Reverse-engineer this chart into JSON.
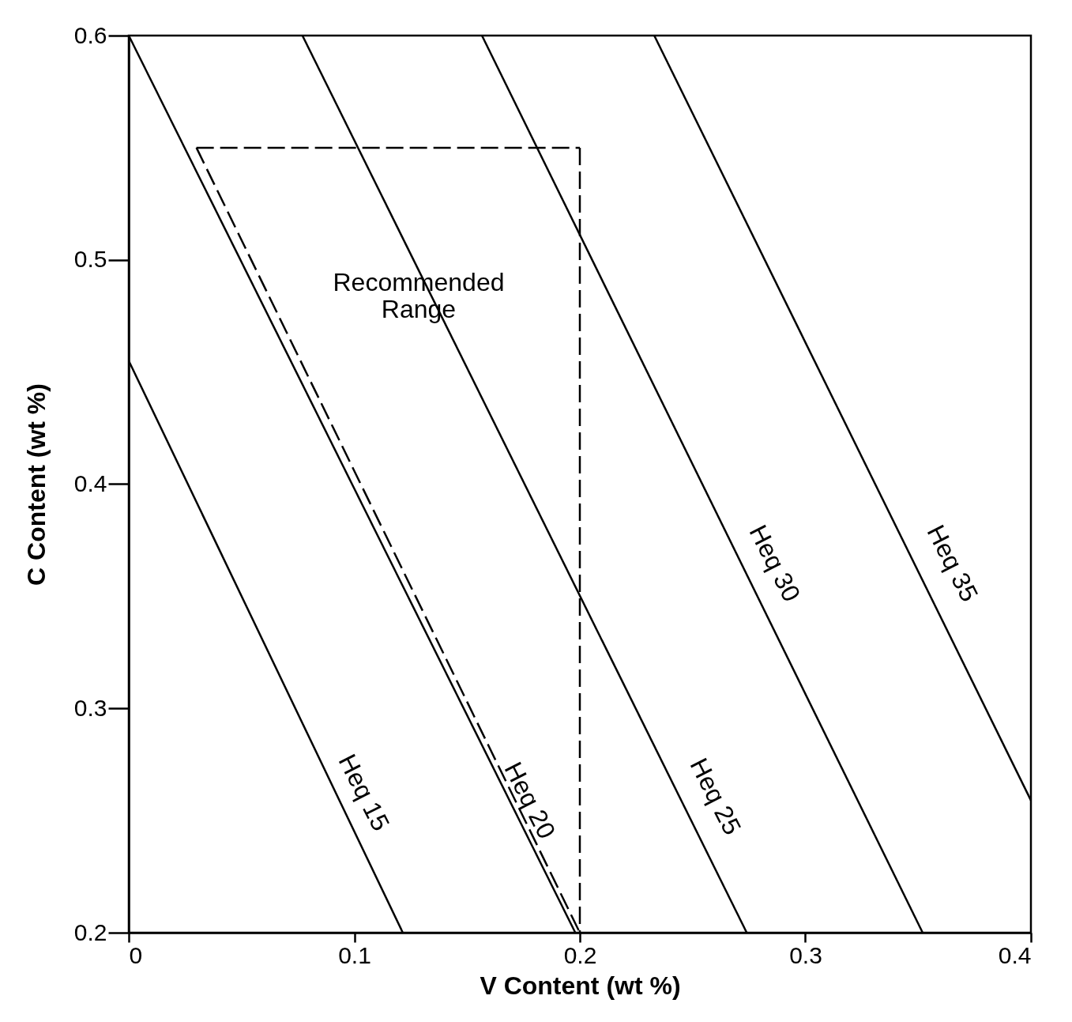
{
  "chart_data": {
    "type": "line",
    "xlabel": "V Content (wt %)",
    "ylabel": "C Content (wt %)",
    "xlim": [
      0,
      0.4
    ],
    "ylim": [
      0.2,
      0.6
    ],
    "xticks": [
      {
        "value": 0,
        "label": "0"
      },
      0.1,
      0.2,
      0.3,
      0.4
    ],
    "yticks": [
      0.2,
      0.3,
      0.4,
      0.5,
      0.6
    ],
    "grid": false,
    "marker": "none",
    "series": [
      {
        "color": "#000000",
        "x": [
          0,
          0.1215
        ],
        "values": [
          0.455,
          0.2
        ]
      },
      {
        "color": "#000000",
        "x": [
          0,
          0.198
        ],
        "values": [
          0.6,
          0.2
        ]
      },
      {
        "color": "#000000",
        "x": [
          0.077,
          0.274
        ],
        "values": [
          0.6,
          0.2
        ]
      },
      {
        "color": "#000000",
        "x": [
          0.1566,
          0.352
        ],
        "values": [
          0.6,
          0.2
        ]
      },
      {
        "color": "#000000",
        "x": [
          0.233,
          0.4
        ],
        "values": [
          0.6,
          0.259
        ]
      },
      {
        "color": "#000000",
        "line_style": "dashed",
        "x": [
          0.03,
          0.2
        ],
        "values": [
          0.55,
          0.55
        ]
      },
      {
        "color": "#000000",
        "line_style": "dashed",
        "x": [
          0.2,
          0.2
        ],
        "values": [
          0.55,
          0.2
        ]
      },
      {
        "color": "#000000",
        "line_style": "dashed",
        "x": [
          0.03,
          0.2
        ],
        "values": [
          0.55,
          0.2
        ]
      }
    ],
    "annotations": [
      "Heq 15",
      "Heq 20",
      "Heq 25",
      "Heq 30",
      "Heq 35",
      "Recommended\nRange"
    ]
  }
}
